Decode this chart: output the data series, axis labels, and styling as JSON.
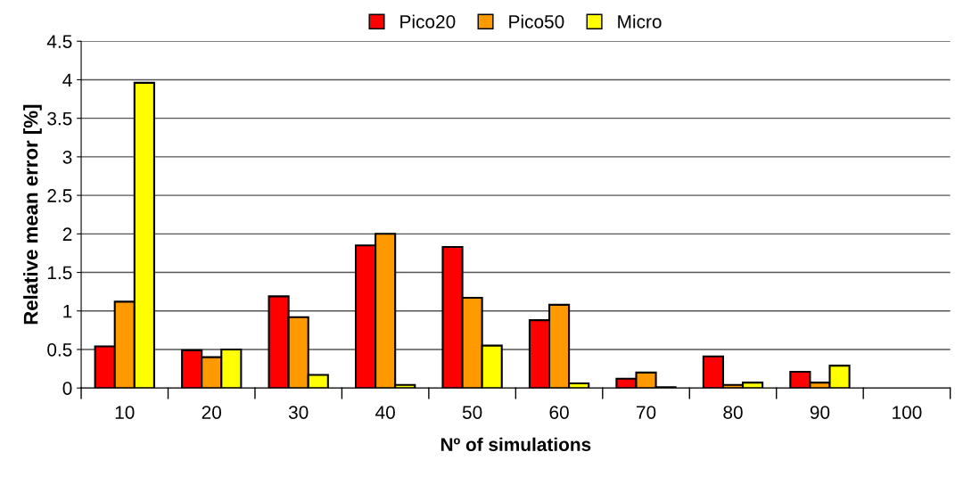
{
  "chart_data": {
    "type": "bar",
    "xlabel": "Nº of simulations",
    "ylabel": "Relative mean error [%]",
    "categories": [
      "10",
      "20",
      "30",
      "40",
      "50",
      "60",
      "70",
      "80",
      "90",
      "100"
    ],
    "series": [
      {
        "name": "Pico20",
        "color": "#ff0000",
        "values": [
          0.54,
          0.49,
          1.19,
          1.85,
          1.83,
          0.88,
          0.12,
          0.41,
          0.21,
          null
        ]
      },
      {
        "name": "Pico50",
        "color": "#ff9900",
        "values": [
          1.12,
          0.4,
          0.92,
          2.0,
          1.17,
          1.08,
          0.2,
          0.04,
          0.07,
          null
        ]
      },
      {
        "name": "Micro",
        "color": "#ffff00",
        "values": [
          3.96,
          0.5,
          0.17,
          0.04,
          0.55,
          0.06,
          0.01,
          0.07,
          0.29,
          null
        ]
      }
    ],
    "ylim": [
      0,
      4.5
    ],
    "yticks": [
      0,
      0.5,
      1,
      1.5,
      2,
      2.5,
      3,
      3.5,
      4,
      4.5
    ],
    "grid": "y",
    "legend": "top"
  }
}
